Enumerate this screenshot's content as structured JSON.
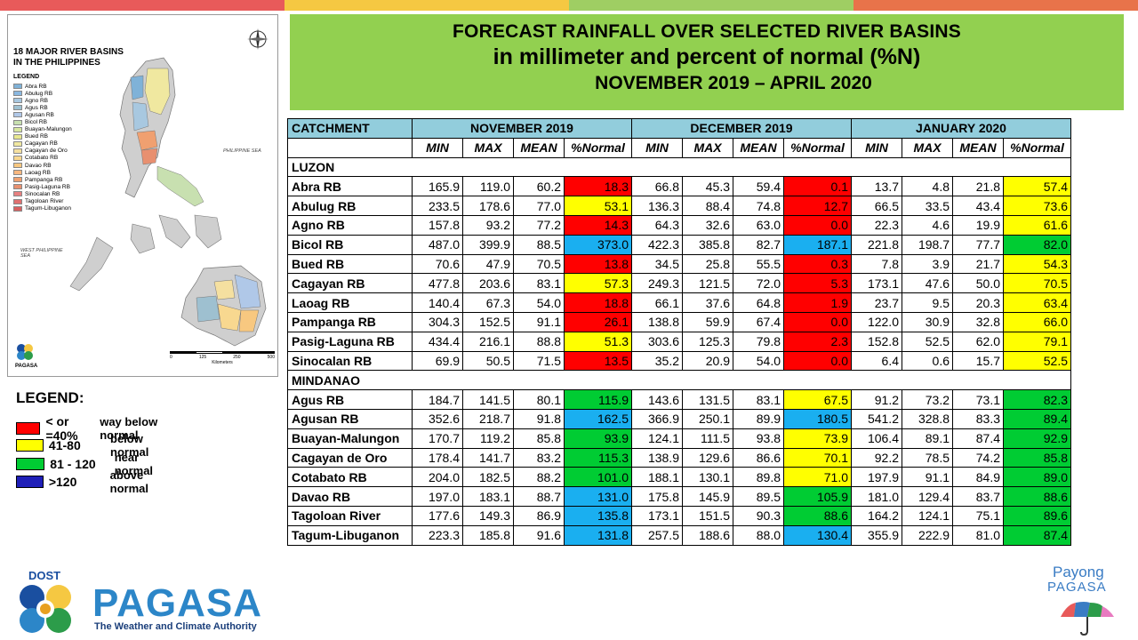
{
  "colors": {
    "top_bar": [
      "#e85a5a",
      "#f5c842",
      "#9fce63",
      "#e8734a"
    ],
    "title_bg": "#92d050",
    "header_bg": "#92cddc",
    "red": "#ff0000",
    "yellow": "#ffff00",
    "green": "#00cc33",
    "blue": "#1aaff0",
    "legend_above": "#1f1fb8"
  },
  "title": {
    "line1": "FORECAST RAINFALL OVER SELECTED RIVER BASINS",
    "line2": "in millimeter  and percent of normal (%N)",
    "line3": "NOVEMBER 2019 – APRIL 2020"
  },
  "map": {
    "title_line1": "18 MAJOR RIVER BASINS",
    "title_line2": "IN THE PHILIPPINES",
    "legend_heading": "LEGEND",
    "legend_items": [
      {
        "label": "Abra RB",
        "color": "#7fb2d8"
      },
      {
        "label": "Abulug RB",
        "color": "#8ab8e0"
      },
      {
        "label": "Agno RB",
        "color": "#a8c8e0"
      },
      {
        "label": "Agus RB",
        "color": "#9ec0d0"
      },
      {
        "label": "Agusan RB",
        "color": "#b0c8e8"
      },
      {
        "label": "Bicol RB",
        "color": "#c8e0b0"
      },
      {
        "label": "Buayan-Malungon",
        "color": "#d8e8a0"
      },
      {
        "label": "Bued RB",
        "color": "#e8e890"
      },
      {
        "label": "Cagayan RB",
        "color": "#f0e8a0"
      },
      {
        "label": "Cagayan de Oro",
        "color": "#f5e0a0"
      },
      {
        "label": "Cotabato RB",
        "color": "#f8d890"
      },
      {
        "label": "Davao RB",
        "color": "#f8c880"
      },
      {
        "label": "Laoag RB",
        "color": "#f8b880"
      },
      {
        "label": "Pampanga RB",
        "color": "#f0a070"
      },
      {
        "label": "Pasig-Laguna RB",
        "color": "#e89070"
      },
      {
        "label": "Sinocalan RB",
        "color": "#e88080"
      },
      {
        "label": "Tagoloan River",
        "color": "#e07070"
      },
      {
        "label": "Tagum-Libuganon",
        "color": "#d86060"
      }
    ],
    "sea_east": "PHILIPPINE SEA",
    "sea_west": "WEST PHILIPPINE SEA",
    "scale_ticks": [
      "0",
      "125",
      "250",
      "500"
    ],
    "scale_unit": "Kilometers",
    "small_logo_label": "PAGASA"
  },
  "table": {
    "catchment_header": "CATCHMENT",
    "months": [
      "NOVEMBER 2019",
      "DECEMBER 2019",
      "JANUARY 2020"
    ],
    "sub_headers": [
      "MIN",
      "MAX",
      "MEAN",
      "%Normal"
    ],
    "sections": [
      {
        "name": "LUZON",
        "rows": [
          {
            "name": "Abra RB",
            "v": [
              [
                "165.9",
                "119.0",
                "60.2",
                "18.3",
                "red"
              ],
              [
                "66.8",
                "45.3",
                "59.4",
                "0.1",
                "red"
              ],
              [
                "13.7",
                "4.8",
                "21.8",
                "57.4",
                "yellow"
              ]
            ]
          },
          {
            "name": "Abulug RB",
            "v": [
              [
                "233.5",
                "178.6",
                "77.0",
                "53.1",
                "yellow"
              ],
              [
                "136.3",
                "88.4",
                "74.8",
                "12.7",
                "red"
              ],
              [
                "66.5",
                "33.5",
                "43.4",
                "73.6",
                "yellow"
              ]
            ]
          },
          {
            "name": "Agno RB",
            "v": [
              [
                "157.8",
                "93.2",
                "77.2",
                "14.3",
                "red"
              ],
              [
                "64.3",
                "32.6",
                "63.0",
                "0.0",
                "red"
              ],
              [
                "22.3",
                "4.6",
                "19.9",
                "61.6",
                "yellow"
              ]
            ]
          },
          {
            "name": "Bicol RB",
            "v": [
              [
                "487.0",
                "399.9",
                "88.5",
                "373.0",
                "blue"
              ],
              [
                "422.3",
                "385.8",
                "82.7",
                "187.1",
                "blue"
              ],
              [
                "221.8",
                "198.7",
                "77.7",
                "82.0",
                "green"
              ]
            ]
          },
          {
            "name": "Bued RB",
            "v": [
              [
                "70.6",
                "47.9",
                "70.5",
                "13.8",
                "red"
              ],
              [
                "34.5",
                "25.8",
                "55.5",
                "0.3",
                "red"
              ],
              [
                "7.8",
                "3.9",
                "21.7",
                "54.3",
                "yellow"
              ]
            ]
          },
          {
            "name": "Cagayan RB",
            "v": [
              [
                "477.8",
                "203.6",
                "83.1",
                "57.3",
                "yellow"
              ],
              [
                "249.3",
                "121.5",
                "72.0",
                "5.3",
                "red"
              ],
              [
                "173.1",
                "47.6",
                "50.0",
                "70.5",
                "yellow"
              ]
            ]
          },
          {
            "name": "Laoag RB",
            "v": [
              [
                "140.4",
                "67.3",
                "54.0",
                "18.8",
                "red"
              ],
              [
                "66.1",
                "37.6",
                "64.8",
                "1.9",
                "red"
              ],
              [
                "23.7",
                "9.5",
                "20.3",
                "63.4",
                "yellow"
              ]
            ]
          },
          {
            "name": "Pampanga RB",
            "v": [
              [
                "304.3",
                "152.5",
                "91.1",
                "26.1",
                "red"
              ],
              [
                "138.8",
                "59.9",
                "67.4",
                "0.0",
                "red"
              ],
              [
                "122.0",
                "30.9",
                "32.8",
                "66.0",
                "yellow"
              ]
            ]
          },
          {
            "name": "Pasig-Laguna RB",
            "v": [
              [
                "434.4",
                "216.1",
                "88.8",
                "51.3",
                "yellow"
              ],
              [
                "303.6",
                "125.3",
                "79.8",
                "2.3",
                "red"
              ],
              [
                "152.8",
                "52.5",
                "62.0",
                "79.1",
                "yellow"
              ]
            ]
          },
          {
            "name": "Sinocalan RB",
            "v": [
              [
                "69.9",
                "50.5",
                "71.5",
                "13.5",
                "red"
              ],
              [
                "35.2",
                "20.9",
                "54.0",
                "0.0",
                "red"
              ],
              [
                "6.4",
                "0.6",
                "15.7",
                "52.5",
                "yellow"
              ]
            ]
          }
        ]
      },
      {
        "name": "MINDANAO",
        "rows": [
          {
            "name": "Agus RB",
            "v": [
              [
                "184.7",
                "141.5",
                "80.1",
                "115.9",
                "green"
              ],
              [
                "143.6",
                "131.5",
                "83.1",
                "67.5",
                "yellow"
              ],
              [
                "91.2",
                "73.2",
                "73.1",
                "82.3",
                "green"
              ]
            ]
          },
          {
            "name": "Agusan RB",
            "v": [
              [
                "352.6",
                "218.7",
                "91.8",
                "162.5",
                "blue"
              ],
              [
                "366.9",
                "250.1",
                "89.9",
                "180.5",
                "blue"
              ],
              [
                "541.2",
                "328.8",
                "83.3",
                "89.4",
                "green"
              ]
            ]
          },
          {
            "name": "Buayan-Malungon",
            "v": [
              [
                "170.7",
                "119.2",
                "85.8",
                "93.9",
                "green"
              ],
              [
                "124.1",
                "111.5",
                "93.8",
                "73.9",
                "yellow"
              ],
              [
                "106.4",
                "89.1",
                "87.4",
                "92.9",
                "green"
              ]
            ]
          },
          {
            "name": "Cagayan de Oro",
            "v": [
              [
                "178.4",
                "141.7",
                "83.2",
                "115.3",
                "green"
              ],
              [
                "138.9",
                "129.6",
                "86.6",
                "70.1",
                "yellow"
              ],
              [
                "92.2",
                "78.5",
                "74.2",
                "85.8",
                "green"
              ]
            ]
          },
          {
            "name": "Cotabato RB",
            "v": [
              [
                "204.0",
                "182.5",
                "88.2",
                "101.0",
                "green"
              ],
              [
                "188.1",
                "130.1",
                "89.8",
                "71.0",
                "yellow"
              ],
              [
                "197.9",
                "91.1",
                "84.9",
                "89.0",
                "green"
              ]
            ]
          },
          {
            "name": "Davao RB",
            "v": [
              [
                "197.0",
                "183.1",
                "88.7",
                "131.0",
                "blue"
              ],
              [
                "175.8",
                "145.9",
                "89.5",
                "105.9",
                "green"
              ],
              [
                "181.0",
                "129.4",
                "83.7",
                "88.6",
                "green"
              ]
            ]
          },
          {
            "name": "Tagoloan River",
            "v": [
              [
                "177.6",
                "149.3",
                "86.9",
                "135.8",
                "blue"
              ],
              [
                "173.1",
                "151.5",
                "90.3",
                "88.6",
                "green"
              ],
              [
                "164.2",
                "124.1",
                "75.1",
                "89.6",
                "green"
              ]
            ]
          },
          {
            "name": "Tagum-Libuganon",
            "v": [
              [
                "223.3",
                "185.8",
                "91.6",
                "131.8",
                "blue"
              ],
              [
                "257.5",
                "188.6",
                "88.0",
                "130.4",
                "blue"
              ],
              [
                "355.9",
                "222.9",
                "81.0",
                "87.4",
                "green"
              ]
            ]
          }
        ]
      }
    ]
  },
  "legend": {
    "heading": "LEGEND:",
    "items": [
      {
        "range": "< or =40%",
        "desc": "way below normal",
        "color": "#ff0000"
      },
      {
        "range": "41-80",
        "desc": "below normal",
        "color": "#ffff00"
      },
      {
        "range": "81 - 120",
        "desc": "near normal",
        "color": "#00cc33"
      },
      {
        "range": ">120",
        "desc": "above normal",
        "color": "#1f1fb8"
      }
    ]
  },
  "footer": {
    "dost": "DOST",
    "pagasa": "PAGASA",
    "tagline": "The Weather and Climate Authority",
    "payong_line1": "Payong",
    "payong_line2": "PAGASA"
  }
}
